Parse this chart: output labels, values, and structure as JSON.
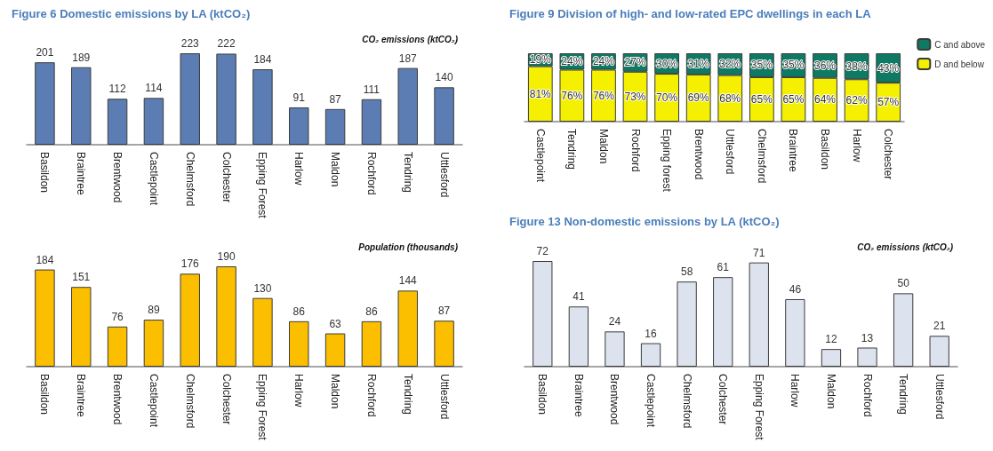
{
  "chart_data": [
    {
      "type": "bar",
      "title": "Figure 6 Domestic emissions by LA (ktCO₂)",
      "subtitle": "CO₂ emissions (ktCO₂)",
      "categories": [
        "Basildon",
        "Braintree",
        "Brentwood",
        "Castlepoint",
        "Chelmsford",
        "Colchester",
        "Epping Forest",
        "Harlow",
        "Maldon",
        "Rochford",
        "Tendring",
        "Uttlesford"
      ],
      "values": [
        201,
        189,
        112,
        114,
        223,
        222,
        184,
        91,
        87,
        111,
        187,
        140
      ],
      "color": "#5b7db3",
      "data_labels": true
    },
    {
      "type": "bar",
      "subtitle": "Population (thousands)",
      "categories": [
        "Basildon",
        "Braintree",
        "Brentwood",
        "Castlepoint",
        "Chelmsford",
        "Colchester",
        "Epping Forest",
        "Harlow",
        "Maldon",
        "Rochford",
        "Tendring",
        "Uttlesford"
      ],
      "values": [
        184,
        151,
        76,
        89,
        176,
        190,
        130,
        86,
        63,
        86,
        144,
        87
      ],
      "color": "#fbbf00",
      "data_labels": true
    },
    {
      "type": "bar",
      "title": "Figure 9 Division of high- and low-rated EPC dwellings in each LA",
      "categories": [
        "Castlepoint",
        "Tendring",
        "Maldon",
        "Rochford",
        "Epping forest",
        "Brentwood",
        "Uttlesford",
        "Chelmsford",
        "Braintree",
        "Basildon",
        "Harlow",
        "Colchester"
      ],
      "stacked": true,
      "legend": "right",
      "series": [
        {
          "name": "D and below",
          "color": "#f5f000",
          "values": [
            81,
            76,
            76,
            73,
            70,
            69,
            68,
            65,
            65,
            64,
            62,
            57
          ],
          "value_labels": [
            "81%",
            "76%",
            "76%",
            "73%",
            "70%",
            "69%",
            "68%",
            "65%",
            "65%",
            "64%",
            "62%",
            "57%"
          ]
        },
        {
          "name": "C and above",
          "color": "#0e7a63",
          "values": [
            19,
            24,
            24,
            27,
            30,
            31,
            32,
            35,
            35,
            36,
            38,
            43
          ],
          "value_labels": [
            "19%",
            "24%",
            "24%",
            "27%",
            "30%",
            "31%",
            "32%",
            "35%",
            "35%",
            "36%",
            "38%",
            "43%"
          ]
        }
      ]
    },
    {
      "type": "bar",
      "title": "Figure 13 Non-domestic emissions by LA (ktCO₂)",
      "subtitle": "CO₂ emissions (ktCO₂)",
      "categories": [
        "Basildon",
        "Braintree",
        "Brentwood",
        "Castlepoint",
        "Chelmsford",
        "Colchester",
        "Epping Forest",
        "Harlow",
        "Maldon",
        "Rochford",
        "Tendring",
        "Uttlesford"
      ],
      "values": [
        72,
        41,
        24,
        16,
        58,
        61,
        71,
        46,
        12,
        13,
        50,
        21
      ],
      "color": "#dde3ee",
      "data_labels": true
    }
  ]
}
